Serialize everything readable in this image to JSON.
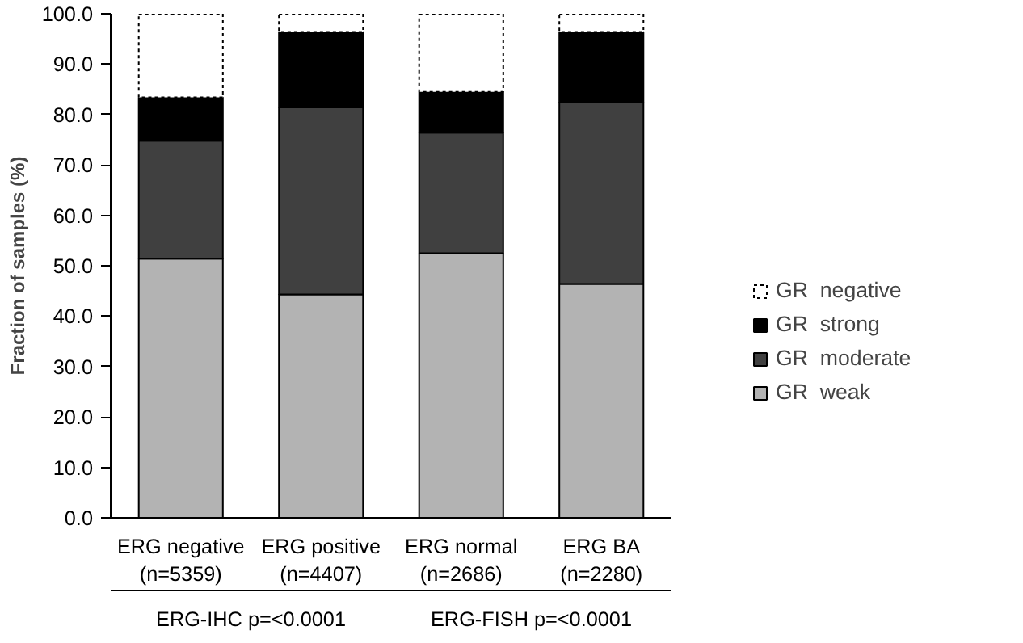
{
  "chart_data": {
    "type": "bar",
    "stacked": true,
    "categories": [
      "ERG negative\n(n=5359)",
      "ERG positive\n(n=4407)",
      "ERG normal\n(n=2686)",
      "ERG BA\n(n=2280)"
    ],
    "series": [
      {
        "name": "GR  weak",
        "color": "#b3b3b3",
        "values": [
          51.4,
          44.3,
          52.5,
          46.4
        ]
      },
      {
        "name": "GR  moderate",
        "color": "#404040",
        "values": [
          23.4,
          37.1,
          23.9,
          36.0
        ]
      },
      {
        "name": "GR  strong",
        "color": "#000000",
        "values": [
          8.6,
          15.0,
          8.1,
          14.0
        ]
      },
      {
        "name": "GR  negative",
        "color": "#ffffff",
        "values": [
          16.6,
          3.6,
          15.5,
          3.6
        ],
        "line_style": "dashed"
      }
    ],
    "ylabel": "Fraction of samples (%)",
    "ylim": [
      0,
      100
    ],
    "yticks": [
      {
        "value": 0,
        "label": "0.0"
      },
      {
        "value": 10,
        "label": "10.0"
      },
      {
        "value": 20,
        "label": "20.0"
      },
      {
        "value": 30,
        "label": "30.0"
      },
      {
        "value": 40,
        "label": "40.0"
      },
      {
        "value": 50,
        "label": "50.0"
      },
      {
        "value": 60,
        "label": "60.0"
      },
      {
        "value": 70,
        "label": "70.0"
      },
      {
        "value": 80,
        "label": "80.0"
      },
      {
        "value": 90,
        "label": "90.0"
      },
      {
        "value": 100,
        "label": "100.0"
      }
    ],
    "annotations": [
      "ERG-IHC p=<0.0001",
      "ERG-FISH p=<0.0001"
    ],
    "grid": false,
    "legend": "right"
  }
}
